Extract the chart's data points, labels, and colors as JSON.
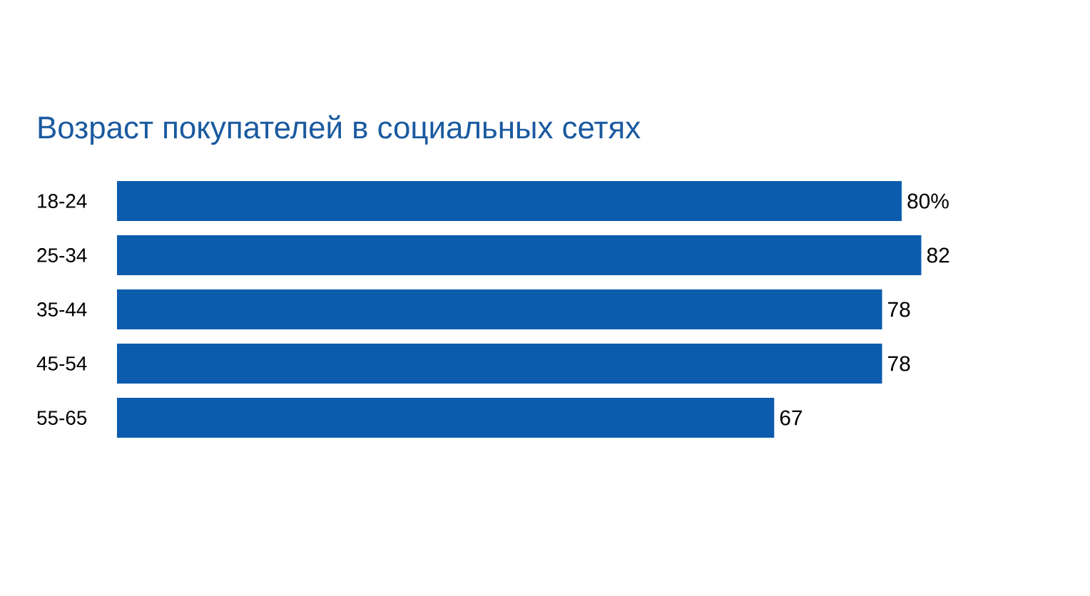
{
  "chart_data": {
    "type": "bar",
    "orientation": "horizontal",
    "title": "Возраст покупателей в социальных сетях",
    "categories": [
      "18-24",
      "25-34",
      "35-44",
      "45-54",
      "55-65"
    ],
    "values": [
      80,
      82,
      78,
      78,
      67
    ],
    "value_labels": [
      "80%",
      "82",
      "78",
      "78",
      "67"
    ],
    "color": "#0b5cad"
  }
}
